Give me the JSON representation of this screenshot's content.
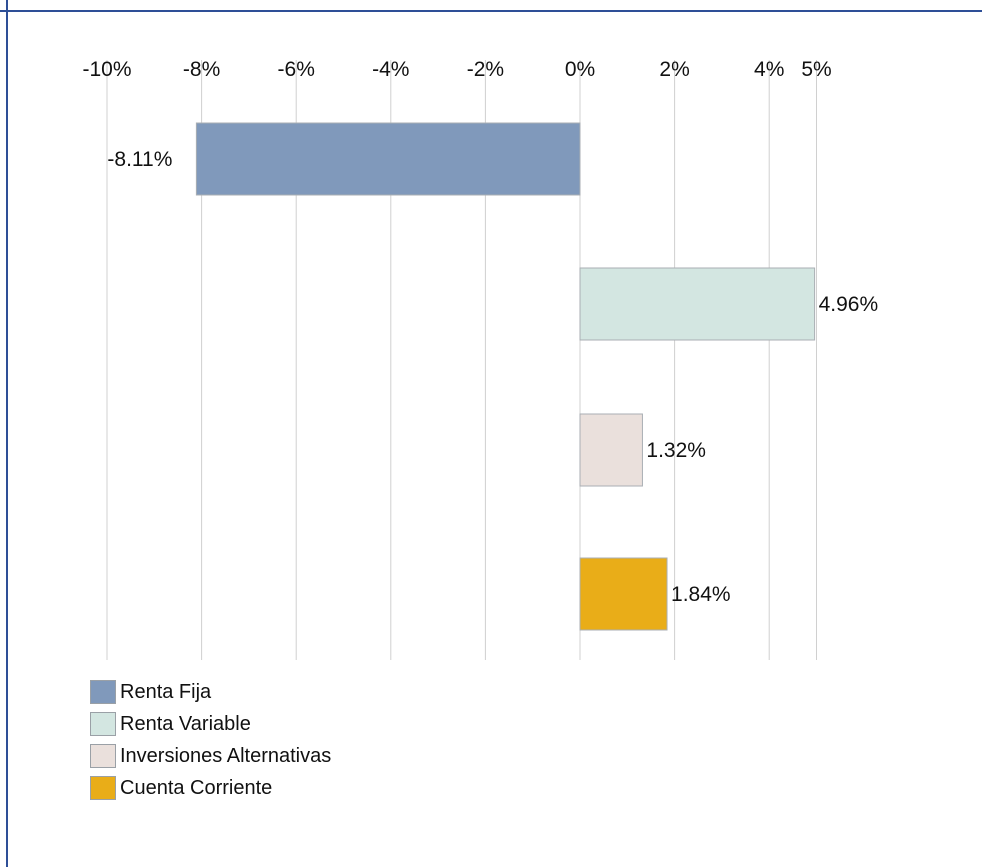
{
  "chart_data": {
    "type": "bar",
    "orientation": "horizontal",
    "title": "",
    "xlabel": "",
    "ylabel": "",
    "xlim": [
      -10,
      5
    ],
    "grid": true,
    "legend_placement": "bottom-left",
    "ticks": [
      {
        "value": -10,
        "label": "-10%"
      },
      {
        "value": -8,
        "label": "-8%"
      },
      {
        "value": -6,
        "label": "-6%"
      },
      {
        "value": -4,
        "label": "-4%"
      },
      {
        "value": -2,
        "label": "-2%"
      },
      {
        "value": 0,
        "label": "0%"
      },
      {
        "value": 2,
        "label": "2%"
      },
      {
        "value": 4,
        "label": "4%"
      },
      {
        "value": 5,
        "label": "5%"
      }
    ],
    "series": [
      {
        "name": "Renta Fija",
        "value": -8.11,
        "label": "-8.11%",
        "color": "#8099bb"
      },
      {
        "name": "Renta Variable",
        "value": 4.96,
        "label": "4.96%",
        "color": "#d3e6e1"
      },
      {
        "name": "Inversiones Alternativas",
        "value": 1.32,
        "label": "1.32%",
        "color": "#eae0dc"
      },
      {
        "name": "Cuenta Corriente",
        "value": 1.84,
        "label": "1.84%",
        "color": "#e9ad18"
      }
    ]
  },
  "colors": {
    "border": "#2e4f97",
    "grid": "#d0d0d0"
  }
}
